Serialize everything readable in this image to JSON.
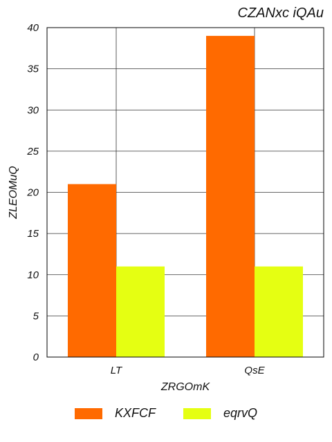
{
  "chart_data": {
    "type": "bar",
    "title": "CZANxc iQAu",
    "xlabel": "ZRGOmK",
    "ylabel": "ZLEOMuQ",
    "categories": [
      "LT",
      "QsE"
    ],
    "series": [
      {
        "name": "KXFCF",
        "values": [
          21,
          39
        ],
        "color": "#ff6a00"
      },
      {
        "name": "eqrvQ",
        "values": [
          11,
          11
        ],
        "color": "#e5ff12"
      }
    ],
    "ylim": [
      0,
      40
    ],
    "yticks": [
      0,
      5,
      10,
      15,
      20,
      25,
      30,
      35,
      40
    ],
    "grid": true,
    "legend_position": "bottom-center"
  }
}
